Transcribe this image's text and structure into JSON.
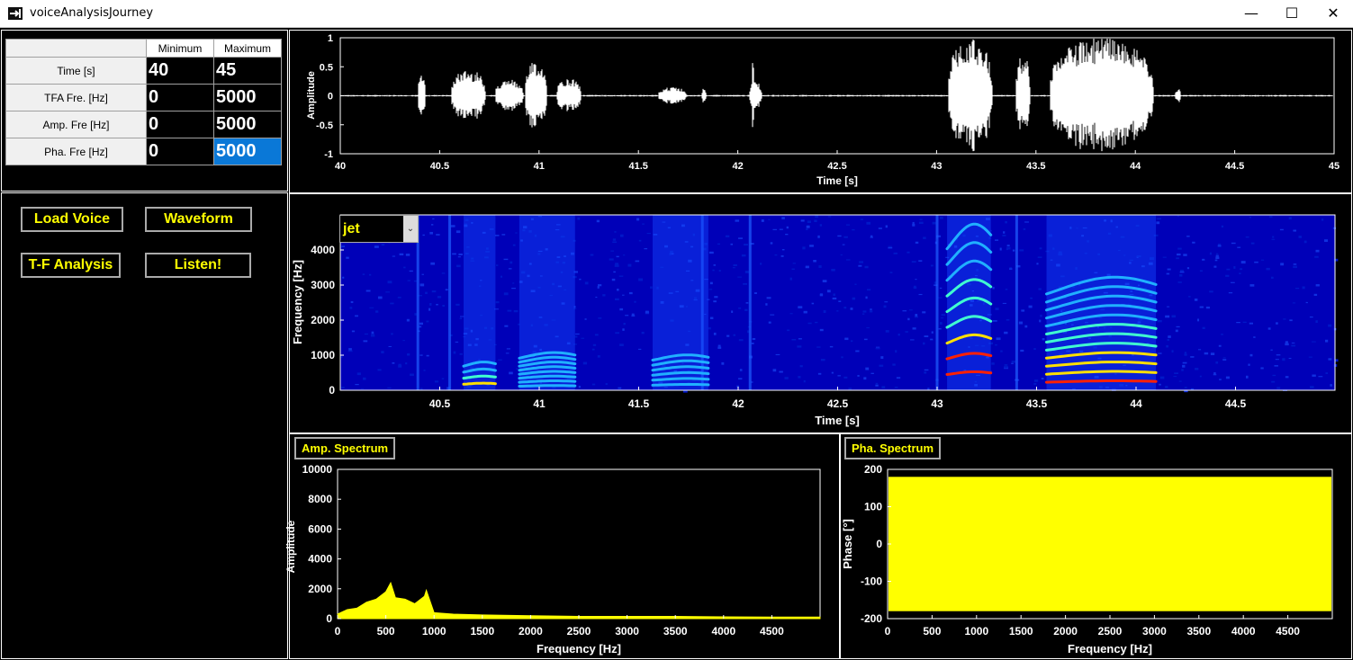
{
  "window": {
    "title": "voiceAnalysisJourney",
    "controls": {
      "minimize": "—",
      "maximize": "☐",
      "close": "✕"
    }
  },
  "limits_table": {
    "headers": [
      "Minimum",
      "Maximum"
    ],
    "rows": [
      {
        "label": "Time [s]",
        "min": "40",
        "max": "45"
      },
      {
        "label": "TFA Fre. [Hz]",
        "min": "0",
        "max": "5000"
      },
      {
        "label": "Amp. Fre [Hz]",
        "min": "0",
        "max": "5000"
      },
      {
        "label": "Pha. Fre [Hz]",
        "min": "0",
        "max": "5000"
      }
    ]
  },
  "buttons": {
    "load_voice": "Load Voice",
    "waveform": "Waveform",
    "tf_analysis": "T-F Analysis",
    "listen": "Listen!",
    "amp_spectrum": "Amp. Spectrum",
    "pha_spectrum": "Pha. Spectrum"
  },
  "colormap_select": {
    "value": "jet"
  },
  "colors": {
    "accent": "#ffff00",
    "selection": "#0a78d7",
    "plot_bg": "#000000"
  },
  "chart_data": [
    {
      "type": "line",
      "xlabel": "Time [s]",
      "ylabel": "Amplitude",
      "xlim": [
        40,
        45
      ],
      "ylim": [
        -1,
        1
      ],
      "xticks": [
        "40",
        "40.5",
        "41",
        "41.5",
        "42",
        "42.5",
        "43",
        "43.5",
        "44",
        "44.5",
        "45"
      ],
      "yticks": [
        "1",
        "0.5",
        "0",
        "-0.5",
        "-1"
      ],
      "segments": [
        {
          "start": 40.39,
          "end": 40.43,
          "amp": 0.35
        },
        {
          "start": 40.56,
          "end": 40.73,
          "amp": 0.45
        },
        {
          "start": 40.78,
          "end": 40.92,
          "amp": 0.28
        },
        {
          "start": 40.93,
          "end": 41.04,
          "amp": 0.6
        },
        {
          "start": 41.09,
          "end": 41.21,
          "amp": 0.3
        },
        {
          "start": 41.6,
          "end": 41.74,
          "amp": 0.15
        },
        {
          "start": 41.82,
          "end": 41.84,
          "amp": 0.15
        },
        {
          "start": 42.06,
          "end": 42.12,
          "amp": 0.25
        },
        {
          "start": 42.07,
          "end": 42.08,
          "amp": 0.95
        },
        {
          "start": 43.06,
          "end": 43.28,
          "amp": 1.0
        },
        {
          "start": 43.4,
          "end": 43.47,
          "amp": 0.7
        },
        {
          "start": 43.57,
          "end": 44.09,
          "amp": 1.0
        },
        {
          "start": 44.2,
          "end": 44.23,
          "amp": 0.12
        }
      ],
      "noise_amp": 0.01
    },
    {
      "type": "heatmap",
      "xlabel": "Time [s]",
      "ylabel": "Frequency [Hz]",
      "xlim": [
        40,
        45
      ],
      "ylim": [
        0,
        5000
      ],
      "xticks": [
        "40.5",
        "41",
        "41.5",
        "42",
        "42.5",
        "43",
        "43.5",
        "44",
        "44.5"
      ],
      "yticks": [
        "4000",
        "3000",
        "2000",
        "1000",
        "0"
      ],
      "colormap": "jet",
      "harmonic_bands": [
        {
          "start": 40.62,
          "end": 40.78,
          "f0": 180,
          "count": 4,
          "intensity": 0.75
        },
        {
          "start": 40.9,
          "end": 41.18,
          "f0": 120,
          "count": 8,
          "intensity": 0.45
        },
        {
          "start": 41.57,
          "end": 41.85,
          "f0": 150,
          "count": 6,
          "intensity": 0.5
        },
        {
          "start": 43.05,
          "end": 43.27,
          "f0": 470,
          "count": 9,
          "intensity": 0.95
        },
        {
          "start": 43.55,
          "end": 44.1,
          "f0": 240,
          "count": 12,
          "intensity": 0.9
        }
      ],
      "vertical_strips": [
        40.39,
        40.55,
        41.82,
        42.06,
        43.0,
        43.4
      ]
    },
    {
      "type": "area",
      "title": "Amp. Spectrum",
      "xlabel": "Frequency [Hz]",
      "ylabel": "Amplitude",
      "xlim": [
        0,
        5000
      ],
      "ylim": [
        0,
        10000
      ],
      "xticks": [
        "0",
        "500",
        "1000",
        "1500",
        "2000",
        "2500",
        "3000",
        "3500",
        "4000",
        "4500"
      ],
      "yticks": [
        "10000",
        "8000",
        "6000",
        "4000",
        "2000",
        "0"
      ],
      "x": [
        0,
        100,
        200,
        300,
        400,
        500,
        550,
        600,
        700,
        800,
        900,
        920,
        1000,
        1200,
        1500,
        2000,
        2500,
        3000,
        3500,
        4000,
        4500,
        5000
      ],
      "y": [
        300,
        600,
        700,
        1100,
        1300,
        1800,
        2400,
        1400,
        1300,
        1000,
        1500,
        1900,
        400,
        300,
        250,
        200,
        150,
        150,
        150,
        120,
        100,
        100
      ]
    },
    {
      "type": "area",
      "title": "Pha. Spectrum",
      "xlabel": "Frequency [Hz]",
      "ylabel": "Phase [°]",
      "xlim": [
        0,
        5000
      ],
      "ylim": [
        -200,
        200
      ],
      "xticks": [
        "0",
        "500",
        "1000",
        "1500",
        "2000",
        "2500",
        "3000",
        "3500",
        "4000",
        "4500"
      ],
      "yticks": [
        "200",
        "100",
        "0",
        "-100",
        "-200"
      ],
      "y_range": [
        -180,
        180
      ]
    }
  ]
}
